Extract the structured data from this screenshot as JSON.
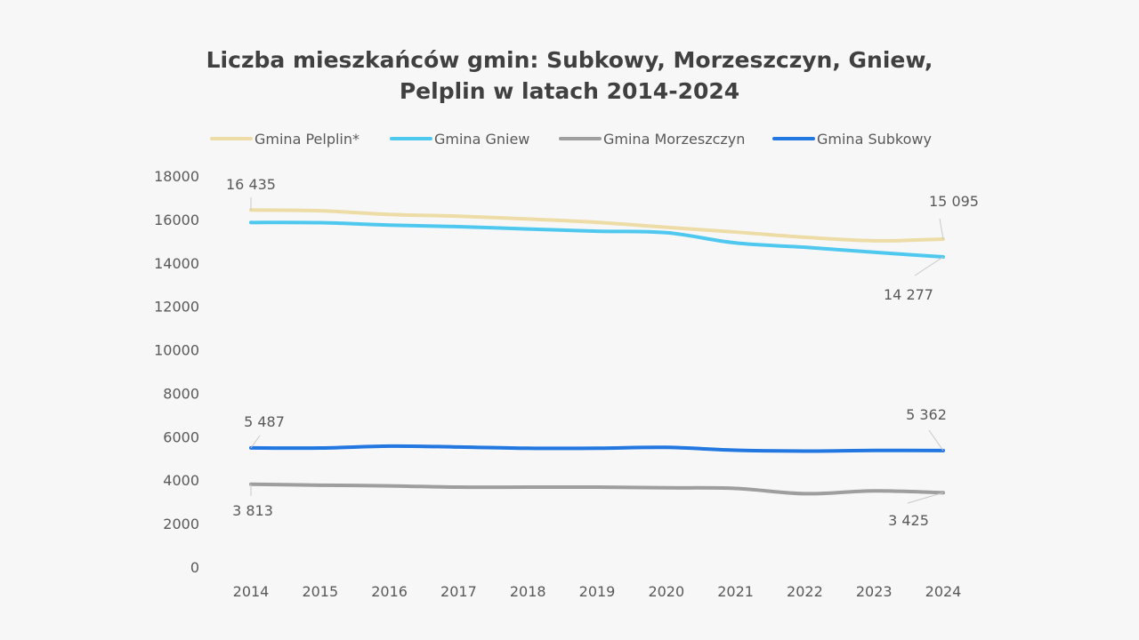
{
  "chart_data": {
    "type": "line",
    "title_line1": "Liczba mieszkańców gmin: Subkowy, Morzeszczyn, Gniew,",
    "title_line2": "Pelplin w latach 2014-2024",
    "x": [
      "2014",
      "2015",
      "2016",
      "2017",
      "2018",
      "2019",
      "2020",
      "2021",
      "2022",
      "2023",
      "2024"
    ],
    "y_ticks": [
      "0",
      "2000",
      "4000",
      "6000",
      "8000",
      "10000",
      "12000",
      "14000",
      "16000",
      "18000"
    ],
    "ylim": [
      0,
      18000
    ],
    "grid": false,
    "legend_position": "top",
    "series": [
      {
        "name": "Gmina Pelplin*",
        "color": "#eddca6",
        "values": [
          16435,
          16400,
          16230,
          16150,
          16020,
          15870,
          15640,
          15420,
          15180,
          15020,
          15095
        ]
      },
      {
        "name": "Gmina Gniew",
        "color": "#4fc8f0",
        "values": [
          15860,
          15850,
          15740,
          15670,
          15560,
          15460,
          15390,
          14920,
          14720,
          14490,
          14277
        ]
      },
      {
        "name": "Gmina Morzeszczyn",
        "color": "#9e9e9e",
        "values": [
          3813,
          3770,
          3740,
          3680,
          3680,
          3680,
          3650,
          3620,
          3380,
          3510,
          3425
        ]
      },
      {
        "name": "Gmina Subkowy",
        "color": "#2277e0",
        "values": [
          5487,
          5480,
          5570,
          5530,
          5470,
          5470,
          5510,
          5380,
          5340,
          5370,
          5362
        ]
      }
    ],
    "annotations": [
      {
        "series": 0,
        "index": 0,
        "text": "16 435"
      },
      {
        "series": 0,
        "index": 10,
        "text": "15 095"
      },
      {
        "series": 1,
        "index": 10,
        "text": "14 277"
      },
      {
        "series": 3,
        "index": 0,
        "text": "5 487"
      },
      {
        "series": 3,
        "index": 10,
        "text": "5 362"
      },
      {
        "series": 2,
        "index": 0,
        "text": "3 813"
      },
      {
        "series": 2,
        "index": 10,
        "text": "3 425"
      }
    ]
  }
}
